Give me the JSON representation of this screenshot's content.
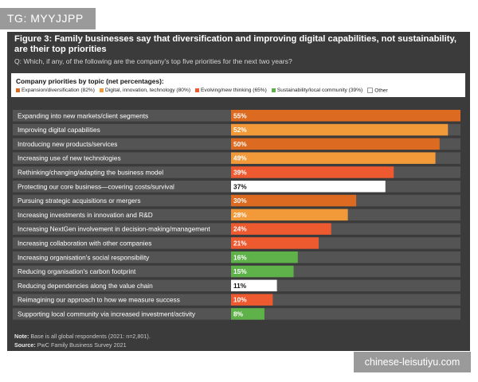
{
  "watermark_top": "TG: MYYJJPP",
  "watermark_bottom": "chinese-leisutiyu.com",
  "title": "Figure 3: Family businesses say that diversification and improving digital capabilities, not sustainability, are their top priorities",
  "question": "Q: Which, if any, of the following are the company's top five priorities for the next two years?",
  "note_label": "Note:",
  "note_text": "Base is all global respondents (2021: n=2,801).",
  "source_label": "Source:",
  "source_text": "PwC Family Business Survey 2021",
  "colors": {
    "expansion": "#dc6a20",
    "digital": "#f29a3a",
    "evolving": "#ee5a30",
    "sustainability": "#5fb24a",
    "other": "#ffffff"
  },
  "chart_data": {
    "type": "bar",
    "orientation": "horizontal",
    "legend_title": "Company priorities by topic (net percentages):",
    "legend": [
      {
        "key": "expansion",
        "label": "Expansion/diversification (82%)"
      },
      {
        "key": "digital",
        "label": "Digital, innovation, technology (80%)"
      },
      {
        "key": "evolving",
        "label": "Evolving/new thinking (65%)"
      },
      {
        "key": "sustainability",
        "label": "Sustainability/local community (39%)"
      },
      {
        "key": "other",
        "label": "Other"
      }
    ],
    "categories": [
      "Expanding into new markets/client segments",
      "Improving digital capabilities",
      "Introducing new products/services",
      "Increasing use of new technologies",
      "Rethinking/changing/adapting the business model",
      "Protecting our core business—covering costs/survival",
      "Pursuing strategic acquisitions or mergers",
      "Increasing investments in innovation and R&D",
      "Increasing NextGen involvement in decision-making/management",
      "Increasing collaboration with other companies",
      "Increasing organisation's social responsibility",
      "Reducing organisation's carbon footprint",
      "Reducing dependencies along the value chain",
      "Reimagining our approach to how we measure success",
      "Supporting local community via increased investment/activity"
    ],
    "values": [
      55,
      52,
      50,
      49,
      39,
      37,
      30,
      28,
      24,
      21,
      16,
      15,
      11,
      10,
      8
    ],
    "value_labels": [
      "55%",
      "52%",
      "50%",
      "49%",
      "39%",
      "37%",
      "30%",
      "28%",
      "24%",
      "21%",
      "16%",
      "15%",
      "11%",
      "10%",
      "8%"
    ],
    "topics": [
      "expansion",
      "digital",
      "expansion",
      "digital",
      "evolving",
      "other",
      "expansion",
      "digital",
      "evolving",
      "evolving",
      "sustainability",
      "sustainability",
      "other",
      "evolving",
      "sustainability"
    ],
    "xlim": [
      0,
      55
    ]
  }
}
